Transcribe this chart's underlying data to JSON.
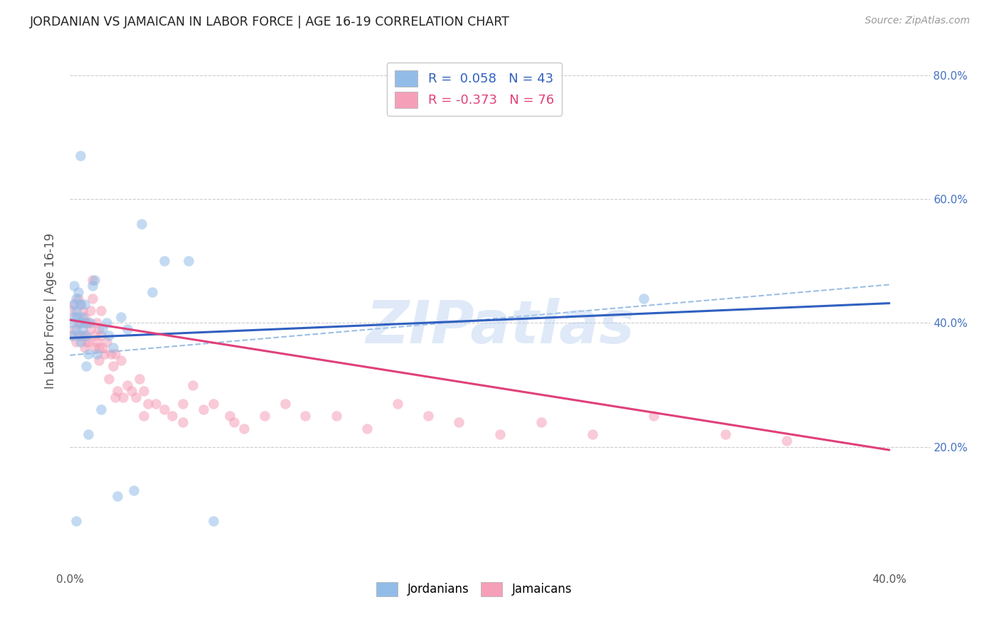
{
  "title": "JORDANIAN VS JAMAICAN IN LABOR FORCE | AGE 16-19 CORRELATION CHART",
  "source": "Source: ZipAtlas.com",
  "ylabel": "In Labor Force | Age 16-19",
  "xlim": [
    0.0,
    0.42
  ],
  "ylim": [
    0.0,
    0.84
  ],
  "xtick_positions": [
    0.0,
    0.4
  ],
  "xtick_labels": [
    "0.0%",
    "40.0%"
  ],
  "ytick_positions": [
    0.2,
    0.4,
    0.6,
    0.8
  ],
  "ytick_labels": [
    "20.0%",
    "40.0%",
    "60.0%",
    "80.0%"
  ],
  "jordanian_color": "#92bce8",
  "jamaican_color": "#f5a0b8",
  "jordanian_line_color": "#3060c0",
  "jamaican_line_color": "#e0407a",
  "dashed_line_color": "#90b8e0",
  "R_jordanian": 0.058,
  "N_jordanian": 43,
  "R_jamaican": -0.373,
  "N_jamaican": 76,
  "legend_label_jordanian": "Jordanians",
  "legend_label_jamaican": "Jamaicans",
  "background_color": "#ffffff",
  "grid_color": "#cccccc",
  "title_color": "#222222",
  "jordanian_x": [
    0.001,
    0.001,
    0.002,
    0.002,
    0.002,
    0.003,
    0.003,
    0.003,
    0.004,
    0.004,
    0.004,
    0.005,
    0.005,
    0.005,
    0.005,
    0.006,
    0.006,
    0.007,
    0.007,
    0.008,
    0.008,
    0.009,
    0.009,
    0.01,
    0.011,
    0.012,
    0.013,
    0.015,
    0.016,
    0.018,
    0.019,
    0.021,
    0.023,
    0.025,
    0.028,
    0.031,
    0.035,
    0.04,
    0.046,
    0.058,
    0.07,
    0.003,
    0.28
  ],
  "jordanian_y": [
    0.38,
    0.4,
    0.41,
    0.43,
    0.46,
    0.39,
    0.42,
    0.44,
    0.38,
    0.41,
    0.45,
    0.37,
    0.4,
    0.43,
    0.67,
    0.39,
    0.41,
    0.4,
    0.43,
    0.33,
    0.38,
    0.35,
    0.22,
    0.4,
    0.46,
    0.47,
    0.35,
    0.26,
    0.39,
    0.4,
    0.38,
    0.36,
    0.12,
    0.41,
    0.39,
    0.13,
    0.56,
    0.45,
    0.5,
    0.5,
    0.08,
    0.08,
    0.44
  ],
  "jamaican_x": [
    0.001,
    0.001,
    0.002,
    0.002,
    0.003,
    0.003,
    0.004,
    0.004,
    0.005,
    0.005,
    0.005,
    0.006,
    0.006,
    0.007,
    0.007,
    0.007,
    0.008,
    0.008,
    0.009,
    0.009,
    0.01,
    0.01,
    0.011,
    0.011,
    0.012,
    0.012,
    0.013,
    0.013,
    0.014,
    0.014,
    0.015,
    0.015,
    0.016,
    0.017,
    0.018,
    0.019,
    0.02,
    0.021,
    0.022,
    0.023,
    0.025,
    0.026,
    0.028,
    0.03,
    0.032,
    0.034,
    0.036,
    0.038,
    0.042,
    0.046,
    0.05,
    0.055,
    0.06,
    0.065,
    0.07,
    0.078,
    0.085,
    0.095,
    0.105,
    0.115,
    0.13,
    0.145,
    0.16,
    0.175,
    0.19,
    0.21,
    0.23,
    0.255,
    0.285,
    0.32,
    0.014,
    0.022,
    0.036,
    0.055,
    0.08,
    0.35
  ],
  "jamaican_y": [
    0.38,
    0.42,
    0.39,
    0.43,
    0.37,
    0.41,
    0.4,
    0.44,
    0.38,
    0.4,
    0.43,
    0.38,
    0.42,
    0.36,
    0.38,
    0.41,
    0.37,
    0.4,
    0.37,
    0.4,
    0.39,
    0.42,
    0.44,
    0.47,
    0.36,
    0.38,
    0.37,
    0.4,
    0.36,
    0.39,
    0.38,
    0.42,
    0.36,
    0.35,
    0.37,
    0.31,
    0.35,
    0.33,
    0.35,
    0.29,
    0.34,
    0.28,
    0.3,
    0.29,
    0.28,
    0.31,
    0.29,
    0.27,
    0.27,
    0.26,
    0.25,
    0.27,
    0.3,
    0.26,
    0.27,
    0.25,
    0.23,
    0.25,
    0.27,
    0.25,
    0.25,
    0.23,
    0.27,
    0.25,
    0.24,
    0.22,
    0.24,
    0.22,
    0.25,
    0.22,
    0.34,
    0.28,
    0.25,
    0.24,
    0.24,
    0.21
  ],
  "watermark_text": "ZIPatlas",
  "marker_size": 110,
  "marker_alpha": 0.55,
  "jordanian_line_x0": 0.0,
  "jordanian_line_y0": 0.376,
  "jordanian_line_x1": 0.4,
  "jordanian_line_y1": 0.432,
  "jamaican_line_x0": 0.0,
  "jamaican_line_y0": 0.405,
  "jamaican_line_x1": 0.4,
  "jamaican_line_y1": 0.195,
  "dash_line_x0": 0.0,
  "dash_line_y0": 0.348,
  "dash_line_x1": 0.4,
  "dash_line_y1": 0.462
}
